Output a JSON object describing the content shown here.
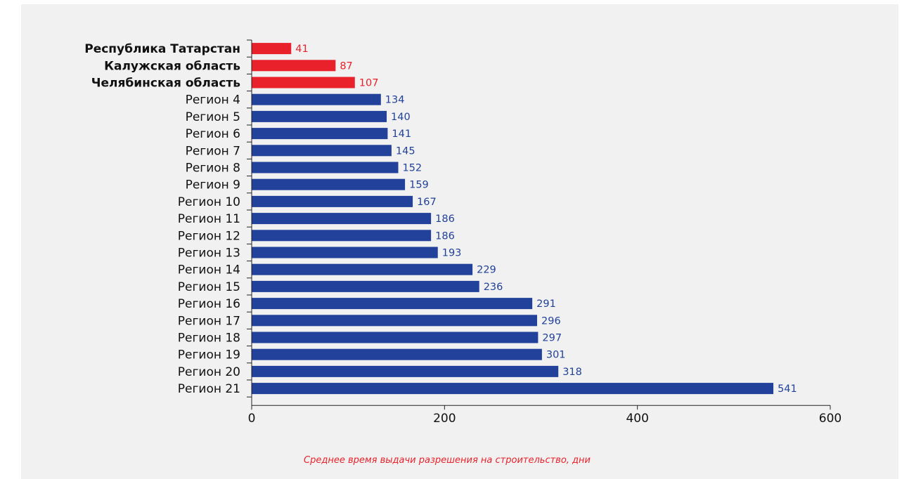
{
  "chart_data": {
    "type": "bar",
    "orientation": "horizontal",
    "categories": [
      "Республика Татарстан",
      "Калужская область",
      "Челябинская  область",
      "Регион 4",
      "Регион 5",
      "Регион 6",
      "Регион 7",
      "Регион 8",
      "Регион 9",
      "Регион 10",
      "Регион 11",
      "Регион 12",
      "Регион 13",
      "Регион 14",
      "Регион 15",
      "Регион 16",
      "Регион 17",
      "Регион 18",
      "Регион 19",
      "Регион 20",
      "Регион 21"
    ],
    "values": [
      41,
      87,
      107,
      134,
      140,
      141,
      145,
      152,
      159,
      167,
      186,
      186,
      193,
      229,
      236,
      291,
      296,
      297,
      301,
      318,
      541
    ],
    "highlighted": [
      true,
      true,
      true,
      false,
      false,
      false,
      false,
      false,
      false,
      false,
      false,
      false,
      false,
      false,
      false,
      false,
      false,
      false,
      false,
      false,
      false
    ],
    "xlabel": "Среднее время выдачи разрешения на строительство, дни",
    "xlim": [
      0,
      600
    ],
    "xticks": [
      0,
      200,
      400,
      600
    ],
    "colors": {
      "highlight": "#e8212a",
      "default": "#21419a"
    },
    "grid": false,
    "legend": "none"
  }
}
